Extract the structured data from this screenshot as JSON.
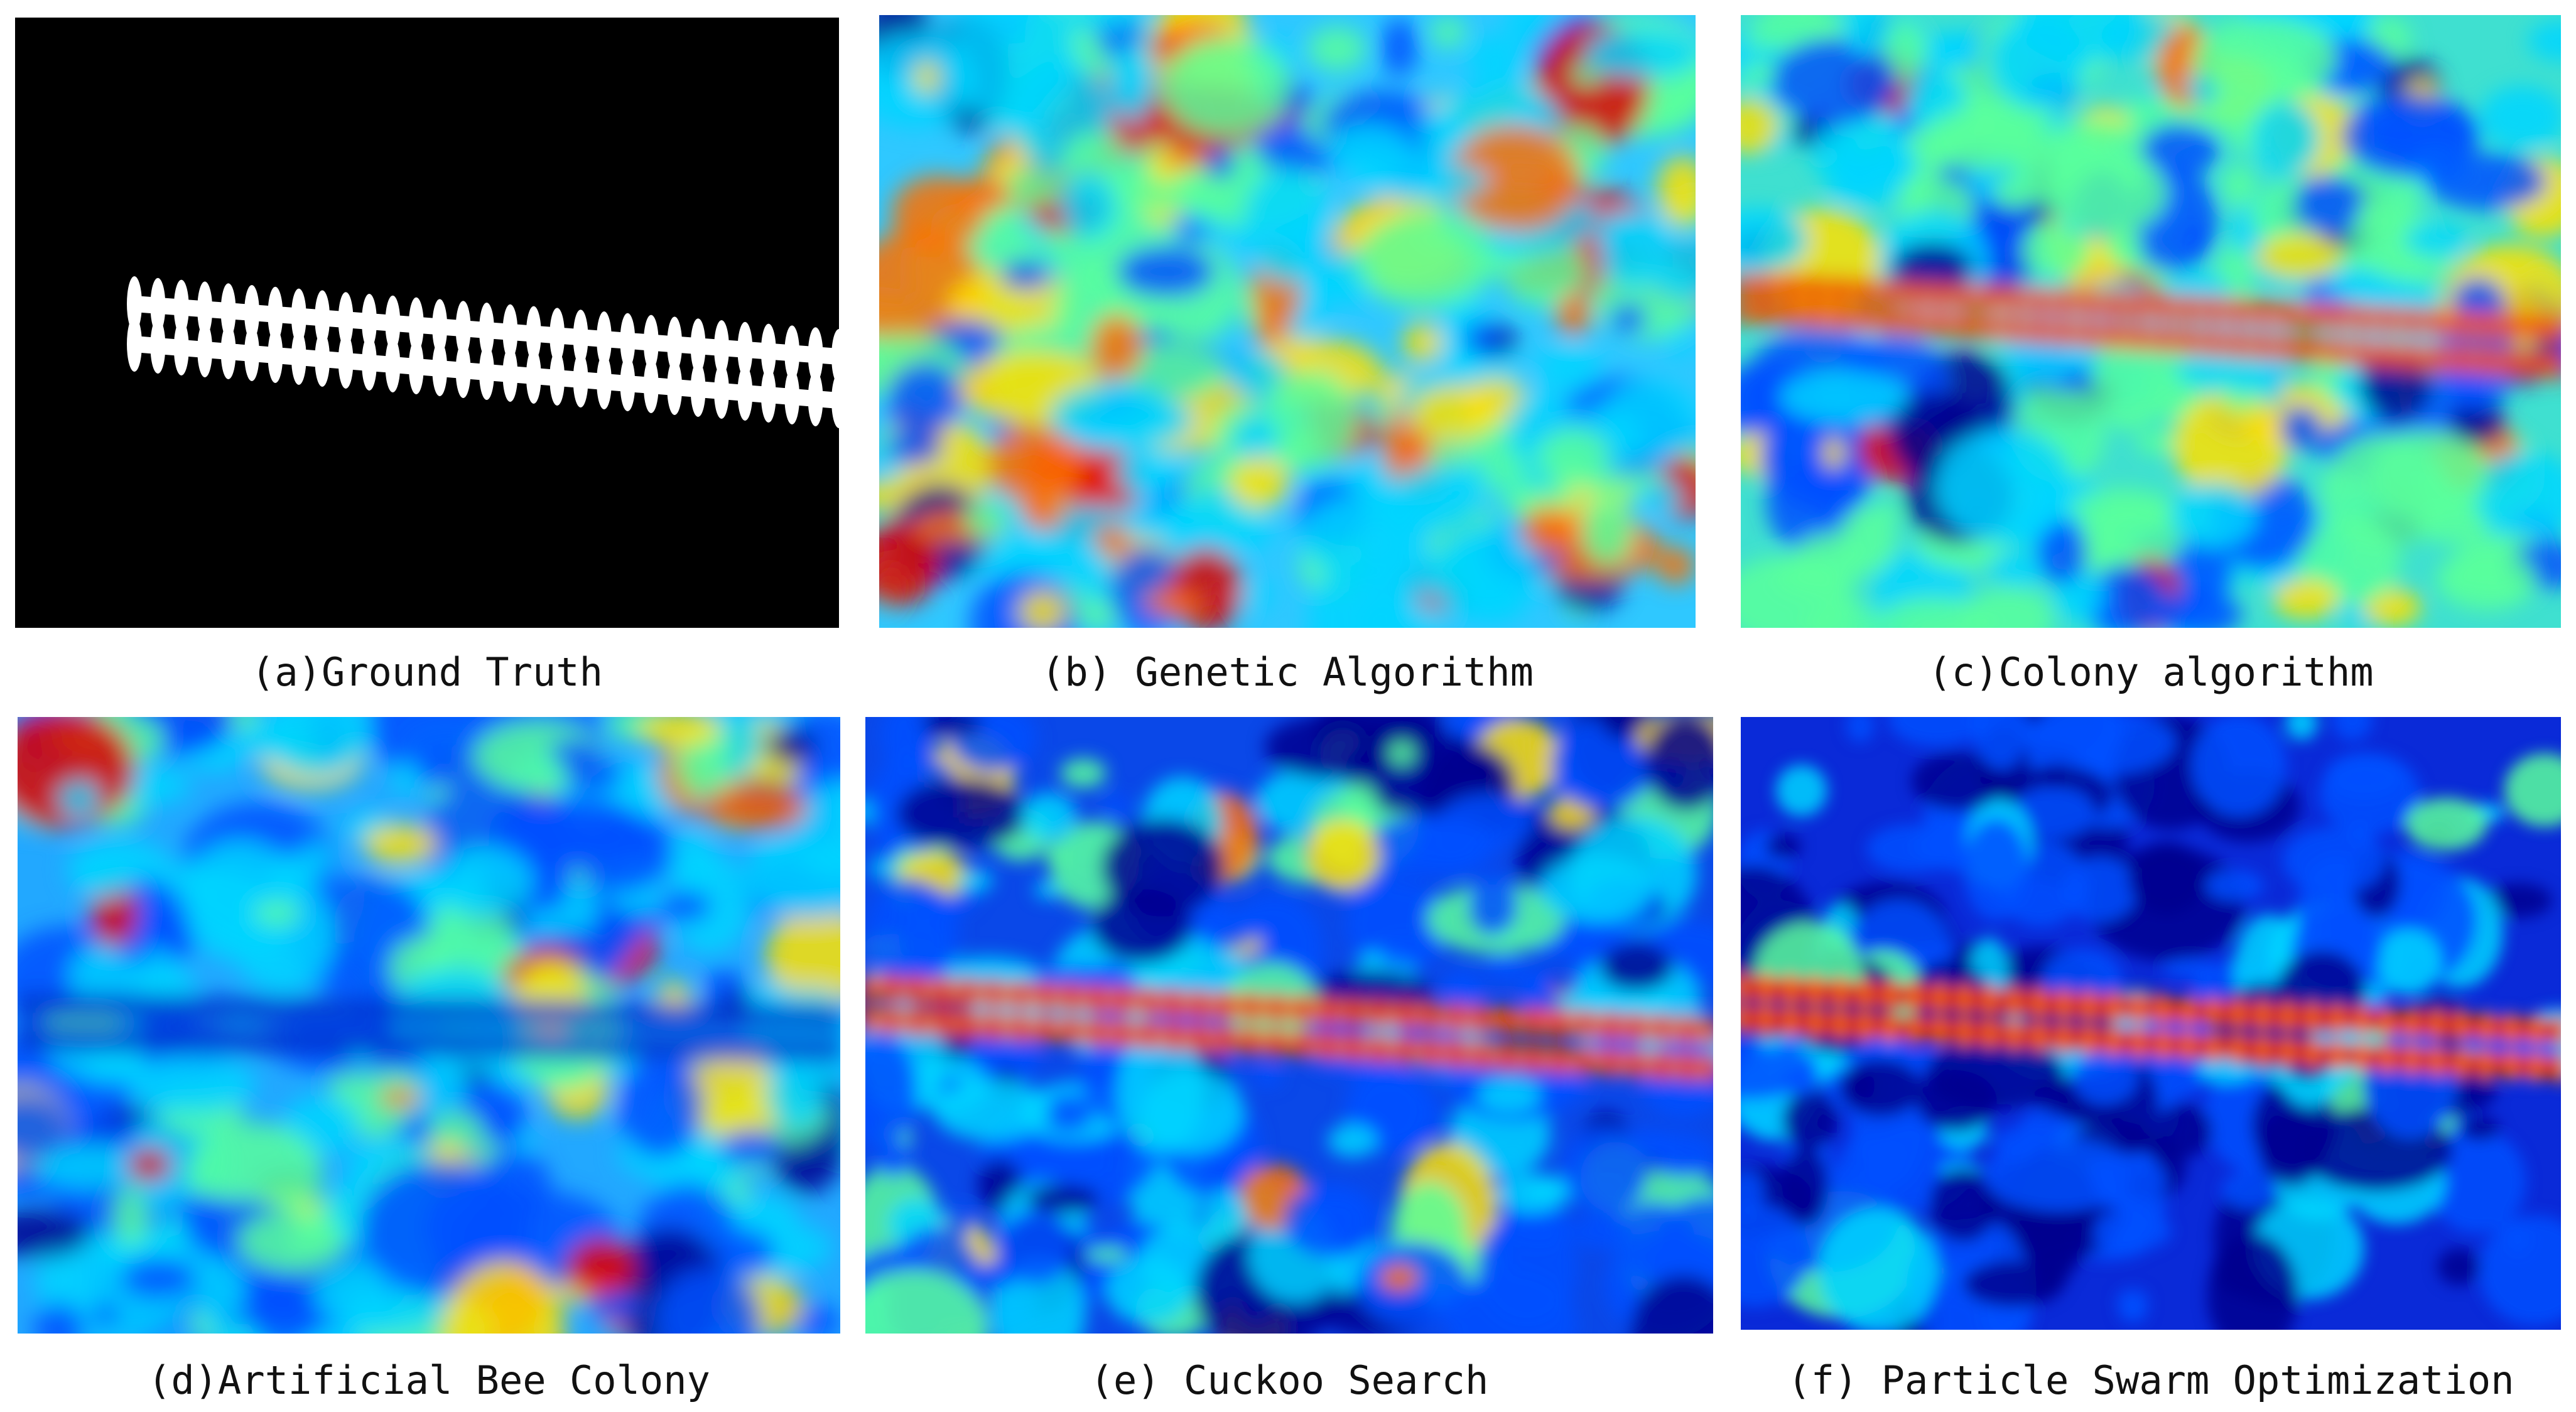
{
  "figure": {
    "panels": [
      {
        "id": "a",
        "caption": "(a)Ground Truth"
      },
      {
        "id": "b",
        "caption": "(b) Genetic Algorithm"
      },
      {
        "id": "c",
        "caption": "(c)Colony algorithm"
      },
      {
        "id": "d",
        "caption": "(d)Artificial Bee Colony"
      },
      {
        "id": "e",
        "caption": "(e) Cuckoo Search"
      },
      {
        "id": "f",
        "caption": "(f) Particle Swarm Optimization"
      }
    ]
  },
  "colors": {
    "background": "#ffffff",
    "mask_bg": "#000000",
    "mask_fg": "#ffffff",
    "jet_dark_blue": "#00008f",
    "jet_blue": "#0050ff",
    "jet_cyan": "#00d5ff",
    "jet_green": "#5aff9c",
    "jet_yellow": "#ffe000",
    "jet_orange": "#ff7000",
    "jet_red": "#e00000"
  }
}
